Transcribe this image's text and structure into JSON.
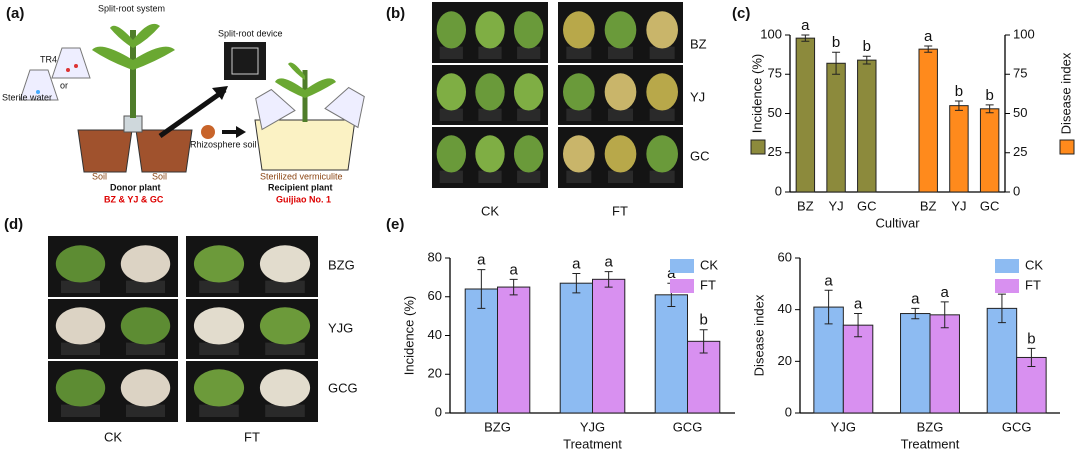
{
  "diagram": {
    "panel": "(a)",
    "system": "Split-root system",
    "device": "Split-root device",
    "pathogen": "TR4",
    "water": "Sterile water",
    "or": "or",
    "rhizosphere": "Rhizosphere soil",
    "soil_left": "Soil",
    "soil_right": "Soil",
    "donor": "Donor plant",
    "donor_cultivars": "BZ & YJ & GC",
    "vermiculite": "Sterilized vermiculite",
    "recipient": "Recipient plant",
    "recipient_cultivar": "Guijiao No. 1"
  },
  "photos_b": {
    "panel": "(b)",
    "rows": [
      "BZ",
      "YJ",
      "GC"
    ],
    "columns": [
      "CK",
      "FT"
    ]
  },
  "photos_d": {
    "panel": "(d)",
    "rows": [
      "BZG",
      "YJG",
      "GCG"
    ],
    "columns": [
      "CK",
      "FT"
    ]
  },
  "panel_e": "(e)",
  "chart_data": [
    {
      "type": "bar",
      "panel": "(c)",
      "categories": [
        "BZ",
        "YJ",
        "GC",
        null,
        "BZ",
        "YJ",
        "GC"
      ],
      "x_label": "Cultivar",
      "legend": "axis",
      "series": [
        {
          "name": "Incidence (%)",
          "color": "#8c8a3c",
          "values": [
            98,
            82,
            84,
            null,
            null,
            null,
            null
          ],
          "errors": [
            2,
            7,
            2.5,
            null,
            null,
            null,
            null
          ],
          "letters": [
            "a",
            "b",
            "b",
            null,
            null,
            null,
            null
          ]
        },
        {
          "name": "Disease index",
          "color": "#ff8a1c",
          "axis": "y2",
          "values": [
            null,
            null,
            null,
            null,
            91,
            55,
            53
          ],
          "errors": [
            null,
            null,
            null,
            null,
            2,
            3,
            2.5
          ],
          "letters": [
            null,
            null,
            null,
            null,
            "a",
            "b",
            "b"
          ]
        }
      ],
      "ylim": [
        0,
        100
      ],
      "yticks": [
        0,
        25,
        50,
        75,
        100
      ],
      "y2lim": [
        0,
        100
      ],
      "y2ticks": [
        0,
        25,
        50,
        75,
        100
      ]
    },
    {
      "type": "bar",
      "categories": [
        "BZG",
        "YJG",
        "GCG"
      ],
      "x_label": "Treatment",
      "y_label": "Incidence (%)",
      "legend": "top-right",
      "series": [
        {
          "name": "CK",
          "color": "#8dbbf2",
          "values": [
            64,
            67,
            61
          ],
          "errors": [
            10,
            5,
            6
          ],
          "letters": [
            "a",
            "a",
            "a"
          ]
        },
        {
          "name": "FT",
          "color": "#d890f0",
          "values": [
            65,
            69,
            37
          ],
          "errors": [
            4,
            4,
            6
          ],
          "letters": [
            "a",
            "a",
            "b"
          ]
        }
      ],
      "ylim": [
        0,
        80
      ],
      "yticks": [
        0,
        20,
        40,
        60,
        80
      ]
    },
    {
      "type": "bar",
      "categories": [
        "YJG",
        "BZG",
        "GCG"
      ],
      "x_label": "Treatment",
      "y_label": "Disease index",
      "legend": "top-right",
      "series": [
        {
          "name": "CK",
          "color": "#8dbbf2",
          "values": [
            41,
            38.5,
            40.5
          ],
          "errors": [
            6.5,
            2,
            5.5
          ],
          "letters": [
            "a",
            "a",
            "a"
          ]
        },
        {
          "name": "FT",
          "color": "#d890f0",
          "values": [
            34,
            38,
            21.5
          ],
          "errors": [
            4.5,
            5,
            3.5
          ],
          "letters": [
            "a",
            "a",
            "b"
          ]
        }
      ],
      "ylim": [
        0,
        60
      ],
      "yticks": [
        0,
        20,
        40,
        60
      ]
    }
  ]
}
